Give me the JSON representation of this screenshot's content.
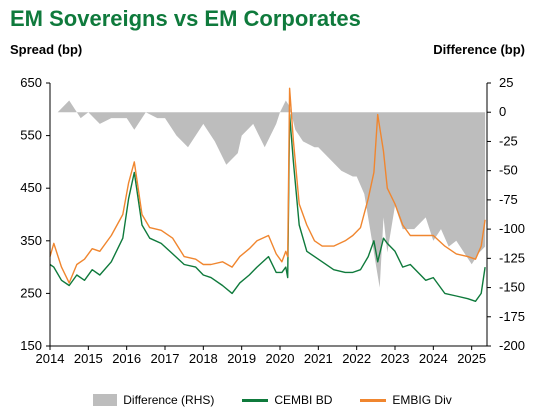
{
  "chart_data": {
    "type": "line",
    "title": "EM Sovereigns vs EM Corporates",
    "ylabel_left": "Spread (bp)",
    "ylabel_right": "Difference (bp)",
    "x_ticks": [
      "2014",
      "2015",
      "2016",
      "2017",
      "2018",
      "2019",
      "2020",
      "2021",
      "2022",
      "2023",
      "2024",
      "2025"
    ],
    "x_range": [
      2014.0,
      2025.4
    ],
    "y_left": {
      "min": 150,
      "max": 650,
      "ticks": [
        150,
        250,
        350,
        450,
        550,
        650
      ]
    },
    "y_right": {
      "min": -200,
      "max": 25,
      "ticks": [
        25,
        0,
        -25,
        -50,
        -75,
        -100,
        -125,
        -150,
        -175,
        -200
      ]
    },
    "grid": false,
    "legend_position": "bottom",
    "series": [
      {
        "name": "Difference (RHS)",
        "kind": "area",
        "axis": "right",
        "color": "#bdbdbd",
        "x": [
          2014.0,
          2014.2,
          2014.5,
          2014.8,
          2015.0,
          2015.3,
          2015.6,
          2016.0,
          2016.2,
          2016.5,
          2016.8,
          2017.0,
          2017.3,
          2017.6,
          2018.0,
          2018.3,
          2018.6,
          2018.9,
          2019.0,
          2019.3,
          2019.6,
          2019.9,
          2020.0,
          2020.15,
          2020.25,
          2020.4,
          2020.6,
          2020.9,
          2021.0,
          2021.3,
          2021.6,
          2021.9,
          2022.0,
          2022.2,
          2022.4,
          2022.5,
          2022.6,
          2022.7,
          2022.8,
          2023.0,
          2023.2,
          2023.5,
          2023.8,
          2024.0,
          2024.2,
          2024.4,
          2024.6,
          2024.8,
          2025.0,
          2025.2,
          2025.35
        ],
        "y": [
          0,
          0,
          10,
          -5,
          0,
          -10,
          -5,
          -5,
          -15,
          0,
          -5,
          -5,
          -20,
          -30,
          -10,
          -25,
          -45,
          -35,
          -20,
          -10,
          -30,
          -10,
          0,
          10,
          5,
          -15,
          -25,
          -30,
          -30,
          -40,
          -50,
          -55,
          -55,
          -70,
          -110,
          -130,
          -150,
          -90,
          -120,
          -80,
          -100,
          -100,
          -90,
          -110,
          -100,
          -115,
          -110,
          -120,
          -130,
          -120,
          -115
        ]
      },
      {
        "name": "CEMBI BD",
        "kind": "line",
        "axis": "left",
        "color": "#0f7a3c",
        "x": [
          2014.0,
          2014.1,
          2014.3,
          2014.5,
          2014.7,
          2014.9,
          2015.1,
          2015.3,
          2015.6,
          2015.9,
          2016.05,
          2016.2,
          2016.4,
          2016.6,
          2016.9,
          2017.2,
          2017.5,
          2017.8,
          2018.0,
          2018.2,
          2018.5,
          2018.75,
          2018.95,
          2019.2,
          2019.4,
          2019.7,
          2019.9,
          2020.05,
          2020.15,
          2020.2,
          2020.25,
          2020.35,
          2020.5,
          2020.7,
          2020.9,
          2021.1,
          2021.4,
          2021.7,
          2021.9,
          2022.1,
          2022.3,
          2022.45,
          2022.55,
          2022.7,
          2022.8,
          2023.0,
          2023.2,
          2023.4,
          2023.6,
          2023.8,
          2024.0,
          2024.3,
          2024.6,
          2024.9,
          2025.1,
          2025.25,
          2025.35
        ],
        "y": [
          305,
          300,
          275,
          265,
          285,
          275,
          295,
          285,
          310,
          355,
          430,
          480,
          380,
          355,
          345,
          325,
          305,
          300,
          285,
          280,
          265,
          250,
          270,
          285,
          300,
          320,
          290,
          290,
          300,
          280,
          590,
          500,
          380,
          330,
          320,
          310,
          295,
          290,
          290,
          295,
          320,
          350,
          310,
          355,
          345,
          330,
          300,
          305,
          290,
          275,
          280,
          250,
          245,
          240,
          235,
          250,
          300
        ]
      },
      {
        "name": "EMBIG Div",
        "kind": "line",
        "axis": "left",
        "color": "#f0862f",
        "x": [
          2014.0,
          2014.1,
          2014.3,
          2014.5,
          2014.7,
          2014.9,
          2015.1,
          2015.3,
          2015.6,
          2015.9,
          2016.05,
          2016.2,
          2016.4,
          2016.6,
          2016.9,
          2017.2,
          2017.5,
          2017.8,
          2018.0,
          2018.2,
          2018.5,
          2018.75,
          2018.95,
          2019.2,
          2019.4,
          2019.7,
          2019.9,
          2020.05,
          2020.15,
          2020.2,
          2020.25,
          2020.35,
          2020.5,
          2020.7,
          2020.9,
          2021.1,
          2021.4,
          2021.7,
          2021.9,
          2022.1,
          2022.3,
          2022.45,
          2022.55,
          2022.7,
          2022.8,
          2023.0,
          2023.2,
          2023.4,
          2023.6,
          2023.8,
          2024.0,
          2024.3,
          2024.6,
          2024.9,
          2025.1,
          2025.25,
          2025.35
        ],
        "y": [
          320,
          345,
          300,
          270,
          305,
          315,
          335,
          330,
          360,
          400,
          460,
          500,
          400,
          375,
          370,
          355,
          320,
          315,
          305,
          305,
          310,
          300,
          320,
          335,
          350,
          360,
          325,
          310,
          330,
          320,
          640,
          540,
          420,
          380,
          350,
          340,
          340,
          350,
          360,
          375,
          430,
          480,
          590,
          520,
          450,
          420,
          380,
          360,
          360,
          360,
          360,
          340,
          325,
          320,
          315,
          340,
          390
        ]
      }
    ]
  },
  "legend": [
    "Difference (RHS)",
    "CEMBI BD",
    "EMBIG Div"
  ]
}
